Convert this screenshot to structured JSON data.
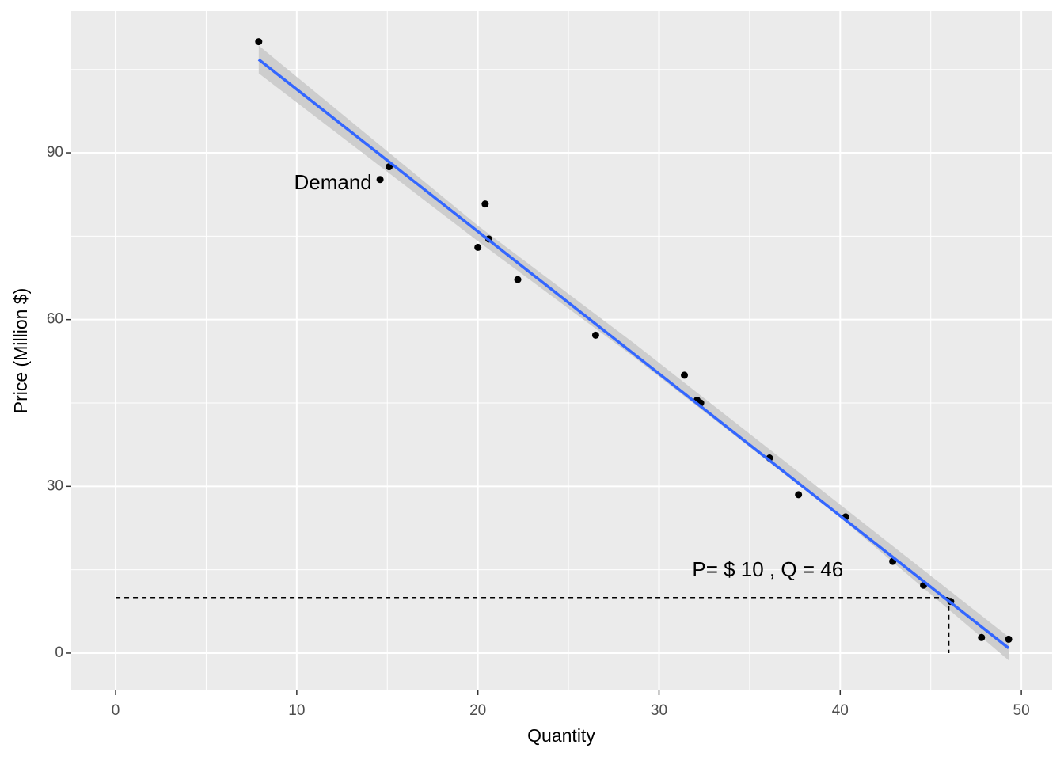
{
  "chart_data": {
    "type": "scatter",
    "x_label": "Quantity",
    "y_label": "Price (Million $)",
    "xlim": [
      -2.45,
      51.7
    ],
    "ylim": [
      -6.7,
      115.5
    ],
    "xticks": [
      0,
      10,
      20,
      30,
      40,
      50
    ],
    "yticks": [
      0,
      30,
      60,
      90
    ],
    "x_minor_ticks": [
      5,
      15,
      25,
      35,
      45
    ],
    "y_minor_ticks": [
      15,
      45,
      75,
      105
    ],
    "grid": true,
    "series": [
      {
        "color": "#000000",
        "x": [
          7.9,
          14.6,
          15.1,
          20.0,
          20.4,
          20.6,
          22.2,
          26.5,
          31.4,
          32.1,
          32.3,
          36.1,
          37.7,
          40.3,
          42.9,
          44.6,
          46.1,
          47.8,
          49.3
        ],
        "values": [
          110,
          85.2,
          87.5,
          73,
          80.8,
          74.5,
          67.2,
          57.2,
          50,
          45.5,
          45,
          35.1,
          28.5,
          24.5,
          16.5,
          12.2,
          9.3,
          2.8,
          2.5
        ]
      }
    ],
    "fit": {
      "color": "#3366ff",
      "x": [
        7.9,
        49.3
      ],
      "values": [
        106.8,
        0.9
      ]
    },
    "band": {
      "color": "#c8c8c8",
      "x": [
        7.9,
        20,
        28.6,
        40,
        49.3
      ],
      "upper": [
        109.3,
        76.9,
        55.8,
        26.7,
        2.9
      ],
      "lower": [
        104.3,
        74.1,
        53.3,
        24.4,
        -1.3
      ]
    },
    "reference": {
      "x": 46,
      "y": 10
    },
    "annotations": [
      {
        "text": "Demand",
        "x": 12.0,
        "y": 84.4
      },
      {
        "text": "P= $ 10 , Q =  46",
        "x": 36.0,
        "y": 14.8
      }
    ]
  }
}
